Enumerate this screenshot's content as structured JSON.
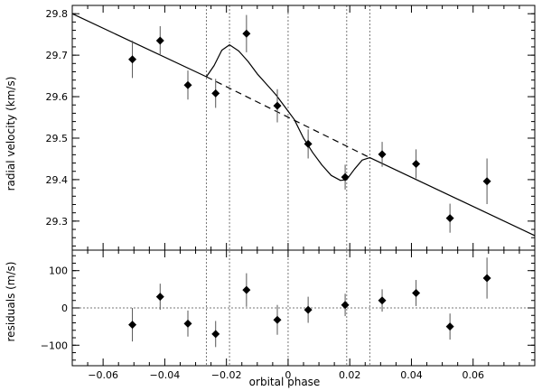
{
  "chart_data": [
    {
      "type": "scatter",
      "panel": "radial-velocity",
      "title": "",
      "xlabel": "",
      "ylabel": "radial velocity (km/s)",
      "xlim": [
        -0.07,
        0.08
      ],
      "ylim": [
        29.23,
        29.82
      ],
      "yticks": [
        "29.3",
        "29.4",
        "29.5",
        "29.6",
        "29.7",
        "29.8"
      ],
      "vlines": [
        -0.0265,
        -0.019,
        0.0,
        0.019,
        0.0265
      ],
      "series": [
        {
          "style": "points-with-errorbars",
          "points": [
            {
              "x": -0.0505,
              "y": 29.69,
              "err": 0.045
            },
            {
              "x": -0.0415,
              "y": 29.735,
              "err": 0.035
            },
            {
              "x": -0.0325,
              "y": 29.628,
              "err": 0.035
            },
            {
              "x": -0.0235,
              "y": 29.608,
              "err": 0.035
            },
            {
              "x": -0.0135,
              "y": 29.752,
              "err": 0.045
            },
            {
              "x": -0.0035,
              "y": 29.578,
              "err": 0.04
            },
            {
              "x": 0.0065,
              "y": 29.486,
              "err": 0.035
            },
            {
              "x": 0.0185,
              "y": 29.406,
              "err": 0.03
            },
            {
              "x": 0.0305,
              "y": 29.461,
              "err": 0.03
            },
            {
              "x": 0.0415,
              "y": 29.438,
              "err": 0.035
            },
            {
              "x": 0.0525,
              "y": 29.307,
              "err": 0.035
            },
            {
              "x": 0.0645,
              "y": 29.396,
              "err": 0.055
            }
          ]
        },
        {
          "style": "solid-line",
          "x": [
            -0.07,
            -0.0265,
            -0.024,
            -0.0215,
            -0.019,
            -0.016,
            -0.013,
            -0.01,
            -0.007,
            -0.004,
            -0.001,
            0.002,
            0.005,
            0.008,
            0.011,
            0.014,
            0.017,
            0.019,
            0.0215,
            0.024,
            0.0265,
            0.08
          ],
          "y": [
            29.8,
            29.648,
            29.675,
            29.712,
            29.725,
            29.71,
            29.685,
            29.655,
            29.63,
            29.605,
            29.575,
            29.545,
            29.5,
            29.465,
            29.435,
            29.41,
            29.398,
            29.4,
            29.425,
            29.447,
            29.453,
            29.265
          ]
        },
        {
          "style": "dashed-line",
          "x": [
            -0.0265,
            0.0265
          ],
          "y": [
            29.648,
            29.453
          ]
        }
      ]
    },
    {
      "type": "scatter",
      "panel": "residuals",
      "title": "",
      "xlabel": "orbital phase",
      "ylabel": "residuals (m/s)",
      "xlim": [
        -0.07,
        0.08
      ],
      "ylim": [
        -155,
        155
      ],
      "xticks": [
        "−0.06",
        "−0.04",
        "−0.02",
        "0",
        "0.02",
        "0.04",
        "0.06"
      ],
      "yticks": [
        "−100",
        "0",
        "100"
      ],
      "series": [
        {
          "style": "points-with-errorbars",
          "points": [
            {
              "x": -0.0505,
              "y": -45,
              "err": 45
            },
            {
              "x": -0.0415,
              "y": 30,
              "err": 35
            },
            {
              "x": -0.0325,
              "y": -42,
              "err": 35
            },
            {
              "x": -0.0235,
              "y": -70,
              "err": 35
            },
            {
              "x": -0.0135,
              "y": 48,
              "err": 45
            },
            {
              "x": -0.0035,
              "y": -32,
              "err": 40
            },
            {
              "x": 0.0065,
              "y": -5,
              "err": 35
            },
            {
              "x": 0.0185,
              "y": 8,
              "err": 30
            },
            {
              "x": 0.0305,
              "y": 20,
              "err": 30
            },
            {
              "x": 0.0415,
              "y": 40,
              "err": 35
            },
            {
              "x": 0.0525,
              "y": -50,
              "err": 35
            },
            {
              "x": 0.0645,
              "y": 80,
              "err": 55
            }
          ]
        }
      ]
    }
  ]
}
